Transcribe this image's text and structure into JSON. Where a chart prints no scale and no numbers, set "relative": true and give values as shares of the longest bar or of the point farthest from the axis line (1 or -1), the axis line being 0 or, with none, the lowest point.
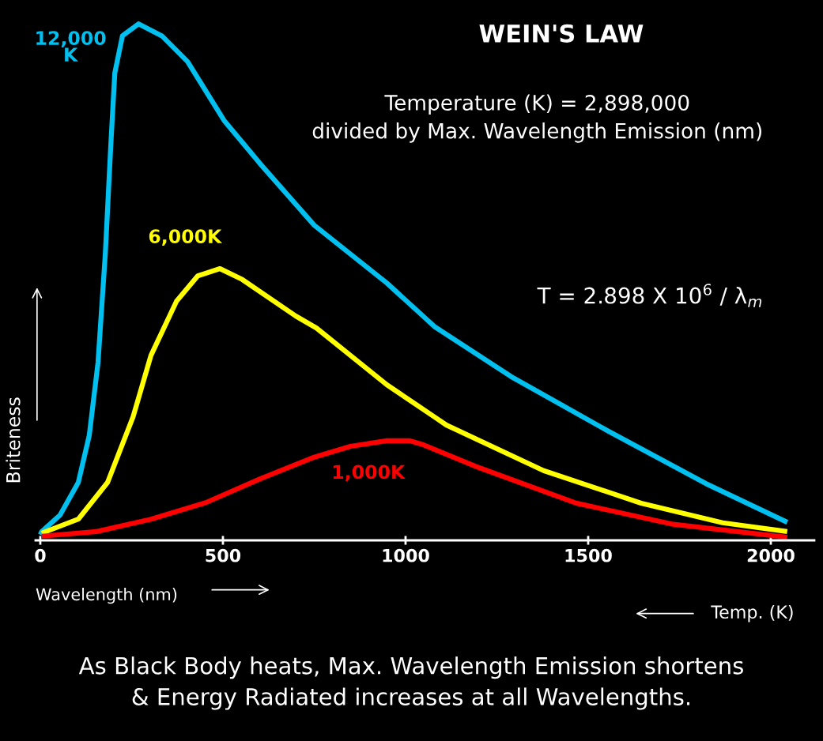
{
  "chart_data": {
    "type": "line",
    "title": "WEIN'S LAW",
    "subtitle": "Temperature (K) = 2,898,000\ndivided by Max. Wavelength Emission (nm)",
    "xlabel": "Wavelength (nm)",
    "ylabel": "Briteness",
    "relative": true,
    "xlim": [
      -13,
      2119
    ],
    "xticks": [
      0,
      500,
      1000,
      1500,
      2000
    ],
    "tick_labels": "x",
    "grid": false,
    "legend": false,
    "marker": "none",
    "line_style": "solid",
    "series": [
      {
        "name": "12,000\nK",
        "color": "#00c0f0",
        "x": [
          0,
          4,
          54,
          104,
          134,
          158,
          178,
          193,
          204,
          225,
          269,
          334,
          403,
          503,
          602,
          750,
          949,
          1079,
          1289,
          1556,
          1822,
          2045
        ],
        "values": [
          0.011,
          0.017,
          0.049,
          0.112,
          0.203,
          0.344,
          0.555,
          0.765,
          0.905,
          0.977,
          1,
          0.976,
          0.927,
          0.813,
          0.729,
          0.61,
          0.498,
          0.414,
          0.317,
          0.211,
          0.11,
          0.035
        ]
      },
      {
        "name": "6,000K",
        "color": "#ffff00",
        "x": [
          4,
          104,
          184,
          254,
          303,
          373,
          431,
          492,
          553,
          700,
          756,
          849,
          949,
          1079,
          1112,
          1378,
          1645,
          1868,
          2045
        ],
        "values": [
          0.014,
          0.041,
          0.112,
          0.239,
          0.358,
          0.463,
          0.512,
          0.526,
          0.505,
          0.434,
          0.411,
          0.358,
          0.301,
          0.239,
          0.223,
          0.135,
          0.072,
          0.034,
          0.017
        ]
      },
      {
        "name": "1,000K",
        "color": "#ff0000",
        "x": [
          4,
          154,
          303,
          453,
          602,
          750,
          849,
          949,
          1010,
          1049,
          1200,
          1467,
          1733,
          2045
        ],
        "values": [
          0.008,
          0.017,
          0.041,
          0.073,
          0.119,
          0.161,
          0.182,
          0.193,
          0.193,
          0.185,
          0.141,
          0.072,
          0.031,
          0.006
        ]
      }
    ],
    "annotations": [
      "T = 2.898 X 10$^{6}$ / λ$_{m}$",
      "Temp. (K)",
      "As Black Body heats, Max. Wavelength Emission shortens\n& Energy Radiated increases at all Wavelengths."
    ]
  }
}
